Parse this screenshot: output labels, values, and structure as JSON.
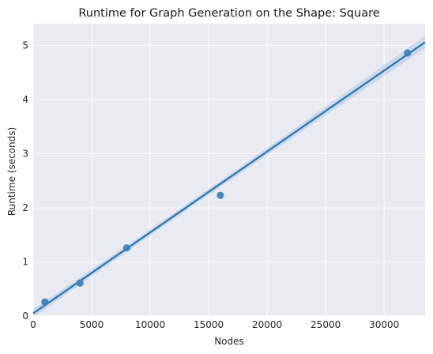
{
  "chart_data": {
    "type": "scatter",
    "title": "Runtime for Graph Generation on the Shape: Square",
    "xlabel": "Nodes",
    "ylabel": "Runtime (seconds)",
    "xlim": [
      0,
      33500
    ],
    "ylim": [
      0,
      5.4
    ],
    "x_ticks": [
      0,
      5000,
      10000,
      15000,
      20000,
      25000,
      30000
    ],
    "y_ticks": [
      0,
      1,
      2,
      3,
      4,
      5
    ],
    "grid": true,
    "points": [
      {
        "x": 1000,
        "y": 0.26
      },
      {
        "x": 4000,
        "y": 0.61
      },
      {
        "x": 8000,
        "y": 1.26
      },
      {
        "x": 16000,
        "y": 2.23
      },
      {
        "x": 32000,
        "y": 4.86
      }
    ],
    "regression": {
      "intercept": 0.05,
      "slope": 0.0001495
    },
    "colors": {
      "background": "#eaeaf2",
      "grid": "#ffffff",
      "point": "#3a7fb4",
      "line": "#2a78b5",
      "band": "#a8c4e0"
    }
  }
}
